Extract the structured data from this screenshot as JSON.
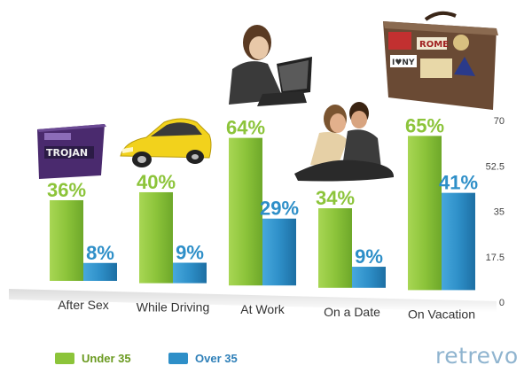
{
  "chart_data": {
    "type": "bar",
    "categories": [
      "After Sex",
      "While Driving",
      "At Work",
      "On a Date",
      "On Vacation"
    ],
    "series": [
      {
        "name": "Under 35",
        "values": [
          36,
          40,
          64,
          34,
          65
        ],
        "labels": [
          "36%",
          "40%",
          "64%",
          "34%",
          "65%"
        ],
        "color": "#8cc43a"
      },
      {
        "name": "Over 35",
        "values": [
          8,
          9,
          29,
          9,
          41
        ],
        "labels": [
          "8%",
          "9%",
          "29%",
          "9%",
          "41%"
        ],
        "color": "#2e8fc8"
      }
    ],
    "yticks": [
      "0",
      "17.5",
      "35",
      "52.5",
      "70"
    ],
    "ylim": [
      0,
      70
    ],
    "legend_position": "bottom-left"
  },
  "branding": {
    "logo_text": "retrevo"
  },
  "illustrations": [
    "condom-box",
    "yellow-car",
    "woman-with-laptop",
    "couple",
    "suitcase"
  ],
  "colors": {
    "under35": "#8cc43a",
    "over35": "#2e8fc8",
    "tick": "#444444",
    "logo": "#8fb4cf"
  }
}
